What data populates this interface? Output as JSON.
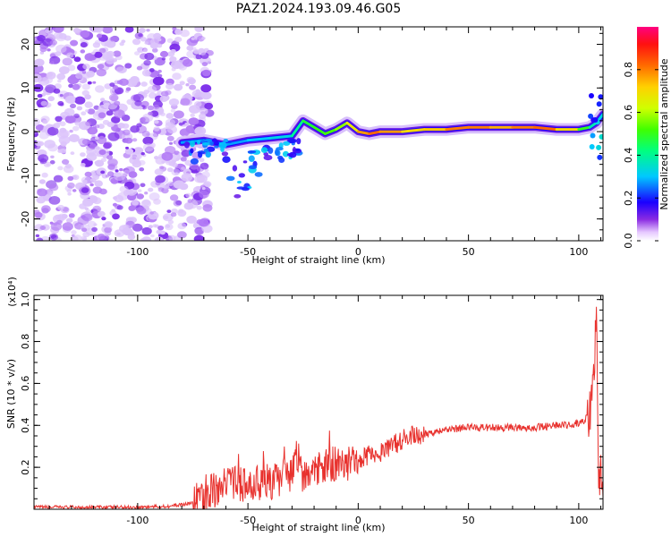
{
  "title": "PAZ1.2024.193.09.46.G05",
  "colors": {
    "snr_line": "#e8322e",
    "frame": "#000000"
  },
  "chart_data": [
    {
      "type": "heatmap",
      "xlabel": "Height of straight line (km)",
      "ylabel": "Frequency (Hz)",
      "xlim": [
        -147,
        111
      ],
      "ylim": [
        -25,
        24
      ],
      "x_ticks": [
        -100,
        -50,
        0,
        50,
        100
      ],
      "x_tick_labels": [
        "-100",
        "-50",
        "0",
        "50",
        "100"
      ],
      "y_ticks": [
        -20,
        -10,
        0,
        10,
        20
      ],
      "y_tick_labels": [
        "-20",
        "-10",
        "0",
        "10",
        "20"
      ],
      "colorbar": {
        "label": "Normalized spectral amplitude",
        "range": [
          0,
          1
        ],
        "ticks": [
          0.0,
          0.2,
          0.4,
          0.6,
          0.8
        ],
        "tick_labels": [
          "0.0",
          "0.2",
          "0.4",
          "0.6",
          "0.8"
        ],
        "colormap": "rainbow"
      },
      "ridge": {
        "x": [
          -80,
          -70,
          -60,
          -50,
          -40,
          -30,
          -25,
          -20,
          -15,
          -10,
          -5,
          0,
          5,
          10,
          20,
          30,
          40,
          50,
          60,
          70,
          80,
          90,
          100,
          105,
          108,
          111
        ],
        "freq": [
          -2.5,
          -2.0,
          -3.0,
          -2.0,
          -1.5,
          -1.0,
          2.5,
          1.0,
          -0.5,
          0.5,
          2.0,
          0.0,
          -0.5,
          0.0,
          0.0,
          0.5,
          0.5,
          1.0,
          1.0,
          1.0,
          1.0,
          0.5,
          0.5,
          1.0,
          2.0,
          4.0
        ],
        "amplitude": [
          0.25,
          0.3,
          0.25,
          0.3,
          0.3,
          0.35,
          0.45,
          0.5,
          0.5,
          0.55,
          0.6,
          0.75,
          0.8,
          0.85,
          0.7,
          0.7,
          0.75,
          0.85,
          0.75,
          0.75,
          0.85,
          0.8,
          0.6,
          0.4,
          0.35,
          0.3
        ]
      },
      "noise_region": {
        "x_range": [
          -147,
          -75
        ],
        "freq_range": [
          -25,
          24
        ],
        "amplitude": 0.05
      }
    },
    {
      "type": "line",
      "xlabel": "Height of straight line (km)",
      "ylabel": "SNR (10 * v/v)",
      "y_multiplier": "(x10⁴)",
      "xlim": [
        -147,
        111
      ],
      "ylim": [
        0,
        1.02
      ],
      "x_ticks": [
        -100,
        -50,
        0,
        50,
        100
      ],
      "x_tick_labels": [
        "-100",
        "-50",
        "0",
        "50",
        "100"
      ],
      "y_ticks": [
        0.2,
        0.4,
        0.6,
        0.8,
        1.0
      ],
      "y_tick_labels": [
        "0.2",
        "0.4",
        "0.6",
        "0.8",
        "1.0"
      ],
      "series": [
        {
          "x": [
            -147,
            -120,
            -100,
            -85,
            -75,
            -70,
            -65,
            -60,
            -55,
            -50,
            -45,
            -40,
            -35,
            -30,
            -27,
            -25,
            -20,
            -15,
            -10,
            -5,
            0,
            5,
            10,
            15,
            20,
            25,
            30,
            35,
            40,
            50,
            60,
            70,
            80,
            90,
            95,
            100,
            103,
            105,
            106,
            107,
            108,
            109,
            110,
            111
          ],
          "y": [
            0.01,
            0.01,
            0.01,
            0.015,
            0.03,
            0.06,
            0.09,
            0.11,
            0.12,
            0.11,
            0.12,
            0.13,
            0.15,
            0.17,
            0.27,
            0.15,
            0.18,
            0.2,
            0.22,
            0.22,
            0.24,
            0.26,
            0.27,
            0.3,
            0.33,
            0.35,
            0.36,
            0.37,
            0.38,
            0.39,
            0.39,
            0.39,
            0.39,
            0.4,
            0.4,
            0.41,
            0.43,
            0.45,
            0.55,
            0.68,
            1.02,
            0.2,
            0.15,
            0.16
          ]
        }
      ]
    }
  ]
}
